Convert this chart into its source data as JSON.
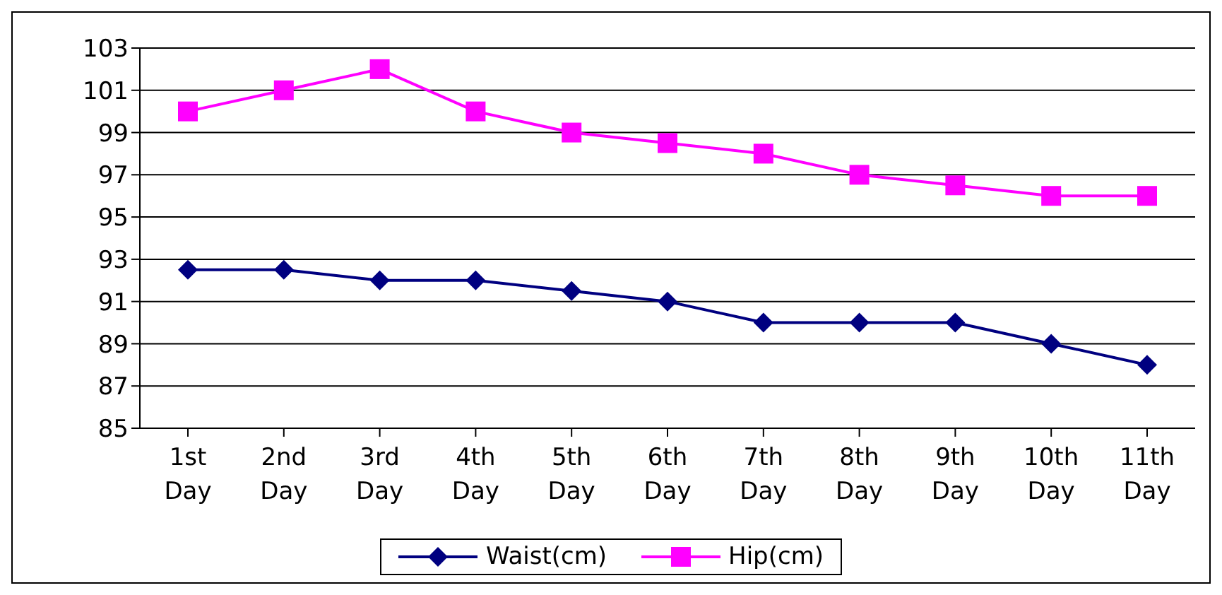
{
  "chart_data": {
    "type": "line",
    "categories": [
      "1st Day",
      "2nd Day",
      "3rd Day",
      "4th Day",
      "5th Day",
      "6th Day",
      "7th Day",
      "8th Day",
      "9th Day",
      "10th Day",
      "11th Day"
    ],
    "series": [
      {
        "name": "Waist(cm)",
        "color": "#000080",
        "marker": "diamond",
        "values": [
          92.5,
          92.5,
          92,
          92,
          91.5,
          91,
          90,
          90,
          90,
          89,
          88
        ]
      },
      {
        "name": "Hip(cm)",
        "color": "#ff00ff",
        "marker": "square",
        "values": [
          100,
          101,
          102,
          100,
          99,
          98.5,
          98,
          97,
          96.5,
          96,
          96
        ]
      }
    ],
    "ylim": [
      85,
      103
    ],
    "yticks": [
      85,
      87,
      89,
      91,
      93,
      95,
      97,
      99,
      101,
      103
    ],
    "grid": "y",
    "legend": "bottom",
    "line_style": "solid"
  }
}
